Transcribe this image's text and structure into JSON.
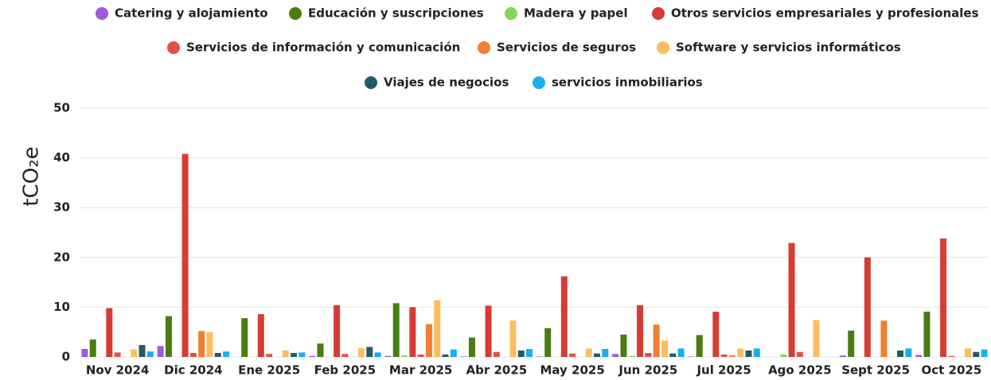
{
  "chart_data": {
    "type": "bar",
    "y_label": "tCO₂e",
    "categories": [
      "Nov 2024",
      "Dic 2024",
      "Ene 2025",
      "Feb 2025",
      "Mar 2025",
      "Abr 2025",
      "May 2025",
      "Jun 2025",
      "Jul 2025",
      "Ago 2025",
      "Sept 2025",
      "Oct 2025"
    ],
    "series": [
      {
        "name": "Catering y alojamiento",
        "color": "#9b5ce0",
        "values": [
          1.6,
          2.2,
          0,
          0.2,
          0.2,
          0.1,
          0.1,
          0.6,
          0.1,
          0,
          0.3,
          0.4
        ]
      },
      {
        "name": "Educación y suscripciones",
        "color": "#4a7c12",
        "values": [
          3.5,
          8.2,
          7.8,
          2.7,
          10.8,
          3.9,
          5.8,
          4.5,
          4.4,
          0,
          5.3,
          9.1
        ]
      },
      {
        "name": "Madera y papel",
        "color": "#7dd95a",
        "values": [
          0,
          0,
          0,
          0,
          0.3,
          0,
          0,
          0.2,
          0,
          0.5,
          0,
          0
        ]
      },
      {
        "name": "Otros servicios empresariales y profesionales",
        "color": "#d63c34",
        "values": [
          9.8,
          40.8,
          8.6,
          10.4,
          10.0,
          10.3,
          16.2,
          10.4,
          9.1,
          22.9,
          20.0,
          23.8
        ]
      },
      {
        "name": "Servicios de información y comunicación",
        "color": "#e2504c",
        "values": [
          0.9,
          0.8,
          0.6,
          0.6,
          0.5,
          1.0,
          0.7,
          0.8,
          0.5,
          1.0,
          0,
          0.2
        ]
      },
      {
        "name": "Servicios de seguros",
        "color": "#f07f30",
        "values": [
          0,
          5.2,
          0,
          0,
          6.6,
          0,
          0,
          6.5,
          0.3,
          0,
          7.3,
          0
        ]
      },
      {
        "name": "Software y servicios informáticos",
        "color": "#fdbd5c",
        "values": [
          1.5,
          5.0,
          1.3,
          1.8,
          11.4,
          7.3,
          1.7,
          3.3,
          1.7,
          7.4,
          0,
          1.7
        ]
      },
      {
        "name": "Viajes de negocios",
        "color": "#1f5c68",
        "values": [
          2.4,
          0.8,
          0.8,
          2.0,
          0.5,
          1.3,
          0.7,
          0.7,
          1.3,
          0,
          1.3,
          1.0
        ]
      },
      {
        "name": "servicios inmobiliarios",
        "color": "#19aef0",
        "values": [
          1.1,
          1.1,
          0.9,
          0.9,
          1.5,
          1.6,
          1.6,
          1.7,
          1.7,
          0,
          1.7,
          1.5
        ]
      }
    ],
    "ylim": [
      0,
      50
    ],
    "yticks": [
      0,
      10,
      20,
      30,
      40,
      50
    ],
    "grid": true,
    "legend": "top"
  }
}
